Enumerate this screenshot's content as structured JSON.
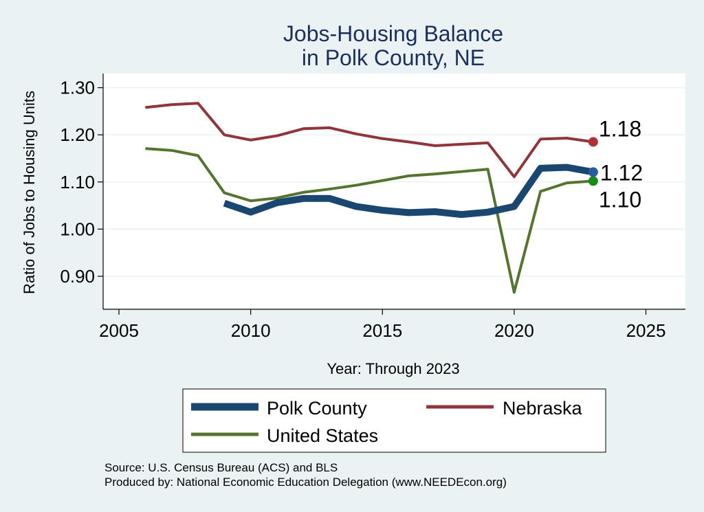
{
  "chart_data": {
    "type": "line",
    "title": [
      "Jobs-Housing Balance",
      "in Polk County, NE"
    ],
    "xlabel": "Year: Through 2023",
    "ylabel": "Ratio of Jobs to Housing Units",
    "xlim": [
      2004.4,
      2026.5
    ],
    "ylim": [
      0.83,
      1.33
    ],
    "xticks": [
      2005,
      2010,
      2015,
      2020,
      2025
    ],
    "yticks": [
      0.9,
      1.0,
      1.1,
      1.2,
      1.3
    ],
    "ytick_labels": [
      "0.90",
      "1.00",
      "1.10",
      "1.20",
      "1.30"
    ],
    "grid": "horizontal",
    "series": [
      {
        "name": "Polk County",
        "color": "#1a476f",
        "style": "thick",
        "x": [
          2009,
          2010,
          2011,
          2012,
          2013,
          2014,
          2015,
          2016,
          2017,
          2018,
          2019,
          2020,
          2021,
          2022,
          2023
        ],
        "values": [
          1.055,
          1.036,
          1.056,
          1.065,
          1.065,
          1.048,
          1.04,
          1.035,
          1.037,
          1.031,
          1.036,
          1.048,
          1.129,
          1.131,
          1.121
        ],
        "end_label": "1.12"
      },
      {
        "name": "Nebraska",
        "color": "#90353b",
        "style": "thin",
        "x": [
          2006,
          2007,
          2008,
          2009,
          2010,
          2011,
          2012,
          2013,
          2014,
          2015,
          2016,
          2017,
          2018,
          2019,
          2020,
          2021,
          2022,
          2023
        ],
        "values": [
          1.258,
          1.264,
          1.267,
          1.2,
          1.189,
          1.198,
          1.213,
          1.215,
          1.202,
          1.192,
          1.185,
          1.177,
          1.18,
          1.183,
          1.111,
          1.191,
          1.193,
          1.185
        ],
        "end_label": "1.18"
      },
      {
        "name": "United States",
        "color": "#55752f",
        "style": "thin",
        "x": [
          2006,
          2007,
          2008,
          2009,
          2010,
          2011,
          2012,
          2013,
          2014,
          2015,
          2016,
          2017,
          2018,
          2019,
          2020,
          2021,
          2022,
          2023
        ],
        "values": [
          1.171,
          1.167,
          1.156,
          1.077,
          1.06,
          1.066,
          1.078,
          1.085,
          1.093,
          1.103,
          1.113,
          1.117,
          1.122,
          1.127,
          0.866,
          1.08,
          1.098,
          1.102
        ],
        "end_label": "1.10"
      }
    ],
    "endpoint_colors": {
      "Polk County": "#2a5d9c",
      "Nebraska": "#b03035",
      "United States": "#178a17"
    },
    "legend": [
      "Polk County",
      "Nebraska",
      "United States"
    ],
    "legend_position": "bottom",
    "footer": [
      "Source: U.S. Census Bureau (ACS) and BLS",
      "Produced by: National Economic Education Delegation (www.NEEDEcon.org)"
    ]
  }
}
